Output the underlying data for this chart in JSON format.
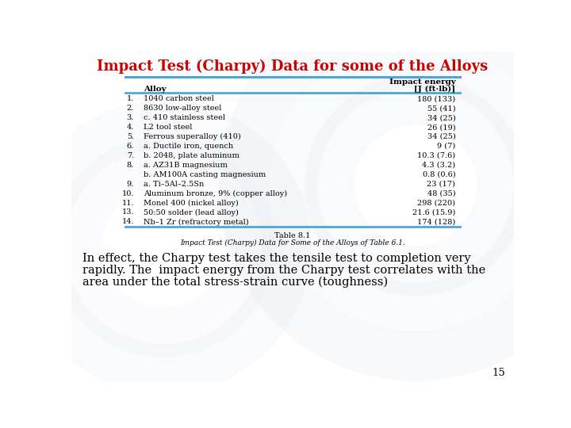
{
  "title": "Impact Test (Charpy) Data for some of the Alloys",
  "title_color": "#cc0000",
  "title_fontsize": 13,
  "table_caption_line1": "Table 8.1",
  "table_caption_line2": "Impact Test (Charpy) Data for Some of the Alloys of Table 6.1.",
  "col_header_alloy": "Alloy",
  "col_header_impact": "Impact energy",
  "col_header_units": "[J (ft·lb)]",
  "rows": [
    {
      "num": "1.",
      "alloy": "1040 carbon steel",
      "energy": "180 (133)"
    },
    {
      "num": "2.",
      "alloy": "8630 low-alloy steel",
      "energy": "55 (41)"
    },
    {
      "num": "3.",
      "alloy": "c. 410 stainless steel",
      "energy": "34 (25)"
    },
    {
      "num": "4.",
      "alloy": "L2 tool steel",
      "energy": "26 (19)"
    },
    {
      "num": "5.",
      "alloy": "Ferrous superalloy (410)",
      "energy": "34 (25)"
    },
    {
      "num": "6.",
      "alloy": "a. Ductile iron, quench",
      "energy": "9 (7)"
    },
    {
      "num": "7.",
      "alloy": "b. 2048, plate aluminum",
      "energy": "10.3 (7.6)"
    },
    {
      "num": "8.",
      "alloy": "a. AZ31B magnesium",
      "energy": "4.3 (3.2)"
    },
    {
      "num": "",
      "alloy": "b. AM100A casting magnesium",
      "energy": "0.8 (0.6)"
    },
    {
      "num": "9.",
      "alloy": "a. Ti–5Al–2.5Sn",
      "energy": "23 (17)"
    },
    {
      "num": "10.",
      "alloy": "Aluminum bronze, 9% (copper alloy)",
      "energy": "48 (35)"
    },
    {
      "num": "11.",
      "alloy": "Monel 400 (nickel alloy)",
      "energy": "298 (220)"
    },
    {
      "num": "13.",
      "alloy": "50:50 solder (lead alloy)",
      "energy": "21.6 (15.9)"
    },
    {
      "num": "14.",
      "alloy": "Nb–1 Zr (refractory metal)",
      "energy": "174 (128)"
    }
  ],
  "footer_text_line1": "In effect, the Charpy test takes the tensile test to completion very",
  "footer_text_line2": "rapidly. The  impact energy from the Charpy test correlates with the",
  "footer_text_line3": "area under the total stress-strain curve (toughness)",
  "page_number": "15",
  "bg_color": "#ffffff",
  "header_line_color": "#4da6d6",
  "swirl_color": "#99aacc"
}
